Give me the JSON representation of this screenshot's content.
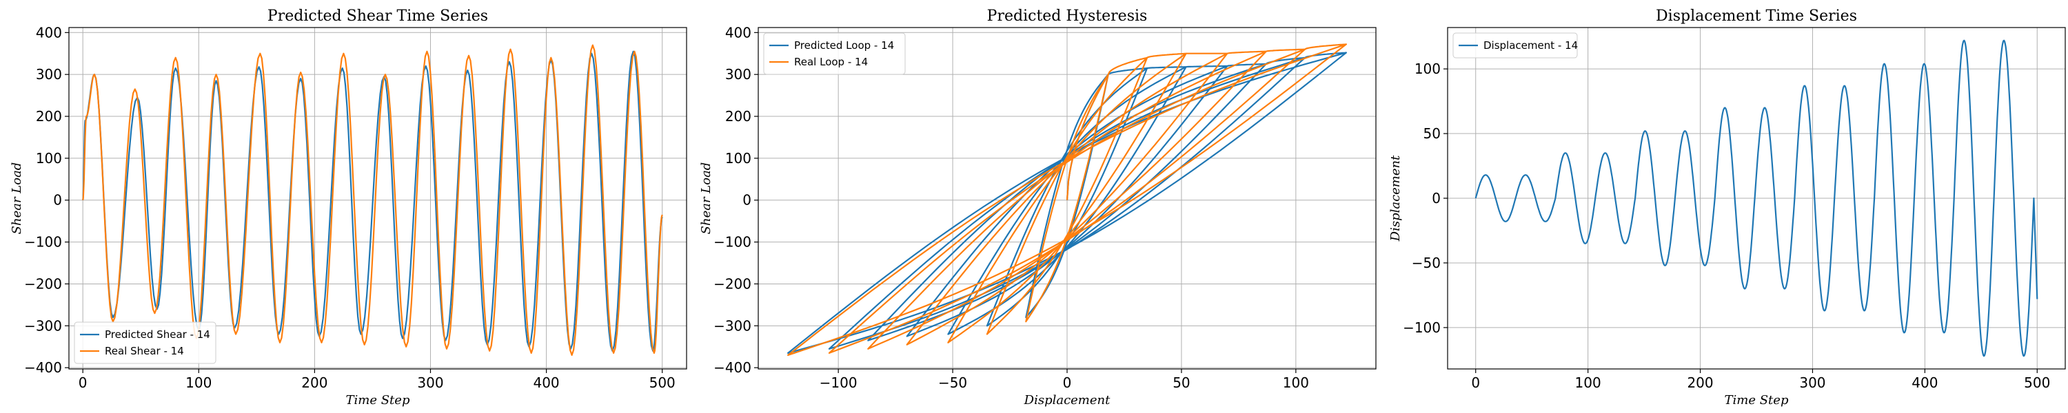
{
  "chart_data": [
    {
      "type": "line",
      "title": "Predicted Shear Time Series",
      "xlabel": "Time Step",
      "ylabel": "Shear Load",
      "xlim": [
        -12,
        521
      ],
      "ylim": [
        -403,
        412
      ],
      "xticks": [
        0,
        100,
        200,
        300,
        400,
        500
      ],
      "yticks": [
        -400,
        -300,
        -200,
        -100,
        0,
        100,
        200,
        300,
        400
      ],
      "grid": true,
      "legend": "lower-left",
      "series": [
        {
          "name": "Predicted Shear - 14",
          "color": "#1f77b4",
          "x": [
            0,
            2,
            10,
            26,
            47,
            64,
            80,
            100,
            115,
            131,
            152,
            169,
            188,
            204,
            224,
            240,
            260,
            276,
            296,
            313,
            332,
            349,
            368,
            385,
            404,
            421,
            439,
            457,
            475,
            492,
            500
          ],
          "y": [
            0,
            190,
            300,
            -280,
            245,
            -260,
            315,
            -310,
            285,
            -305,
            318,
            -320,
            290,
            -325,
            315,
            -320,
            295,
            -330,
            320,
            -335,
            310,
            -345,
            330,
            -350,
            335,
            -355,
            350,
            -360,
            355,
            -360,
            -40
          ]
        },
        {
          "name": "Real Shear - 14",
          "color": "#ff7f0e",
          "x": [
            0,
            3,
            10,
            26,
            45,
            62,
            80,
            98,
            115,
            132,
            153,
            170,
            188,
            206,
            225,
            243,
            261,
            279,
            297,
            314,
            333,
            351,
            369,
            387,
            404,
            422,
            440,
            458,
            476,
            493,
            500
          ],
          "y": [
            0,
            200,
            300,
            -290,
            265,
            -270,
            340,
            -330,
            300,
            -320,
            350,
            -340,
            305,
            -340,
            350,
            -345,
            300,
            -350,
            355,
            -355,
            345,
            -360,
            360,
            -365,
            340,
            -370,
            370,
            -365,
            355,
            -365,
            -35
          ]
        }
      ]
    },
    {
      "type": "line",
      "title": "Predicted Hysteresis",
      "xlabel": "Displacement",
      "ylabel": "Shear Load",
      "xlim": [
        -135,
        135
      ],
      "ylim": [
        -403,
        412
      ],
      "xticks": [
        -100,
        -50,
        0,
        50,
        100
      ],
      "yticks": [
        -400,
        -300,
        -200,
        -100,
        0,
        100,
        200,
        300,
        400
      ],
      "grid": true,
      "legend": "upper-left",
      "amplitudes": [
        18,
        35,
        52,
        70,
        87,
        104,
        122
      ],
      "series": [
        {
          "name": "Predicted Loop - 14",
          "color": "#1f77b4",
          "peaks": [
            [
              18,
              300
            ],
            [
              35,
              315
            ],
            [
              52,
              318
            ],
            [
              70,
              320
            ],
            [
              87,
              325
            ],
            [
              104,
              340
            ],
            [
              122,
              352
            ]
          ],
          "troughs": [
            [
              -18,
              -280
            ],
            [
              -35,
              -300
            ],
            [
              -52,
              -320
            ],
            [
              -70,
              -325
            ],
            [
              -87,
              -335
            ],
            [
              -104,
              -355
            ],
            [
              -122,
              -365
            ]
          ],
          "intercept": 100
        },
        {
          "name": "Real Loop - 14",
          "color": "#ff7f0e",
          "peaks": [
            [
              18,
              300
            ],
            [
              35,
              340
            ],
            [
              52,
              350
            ],
            [
              70,
              350
            ],
            [
              87,
              355
            ],
            [
              104,
              360
            ],
            [
              122,
              372
            ]
          ],
          "troughs": [
            [
              -18,
              -290
            ],
            [
              -35,
              -320
            ],
            [
              -52,
              -340
            ],
            [
              -70,
              -345
            ],
            [
              -87,
              -355
            ],
            [
              -104,
              -365
            ],
            [
              -122,
              -370
            ]
          ],
          "intercept": 85
        }
      ]
    },
    {
      "type": "line",
      "title": "Displacement Time Series",
      "xlabel": "Time Step",
      "ylabel": "Displacement",
      "xlim": [
        -25,
        525
      ],
      "ylim": [
        -132,
        132
      ],
      "xticks": [
        0,
        100,
        200,
        300,
        400,
        500
      ],
      "yticks": [
        -100,
        -50,
        0,
        50,
        100
      ],
      "grid": true,
      "legend": "upper-left",
      "amplitudes": [
        18,
        35,
        52,
        70,
        87,
        104,
        122
      ],
      "cycle_length": 35.5,
      "final_value": -78,
      "series": [
        {
          "name": "Displacement - 14",
          "color": "#1f77b4"
        }
      ]
    }
  ]
}
